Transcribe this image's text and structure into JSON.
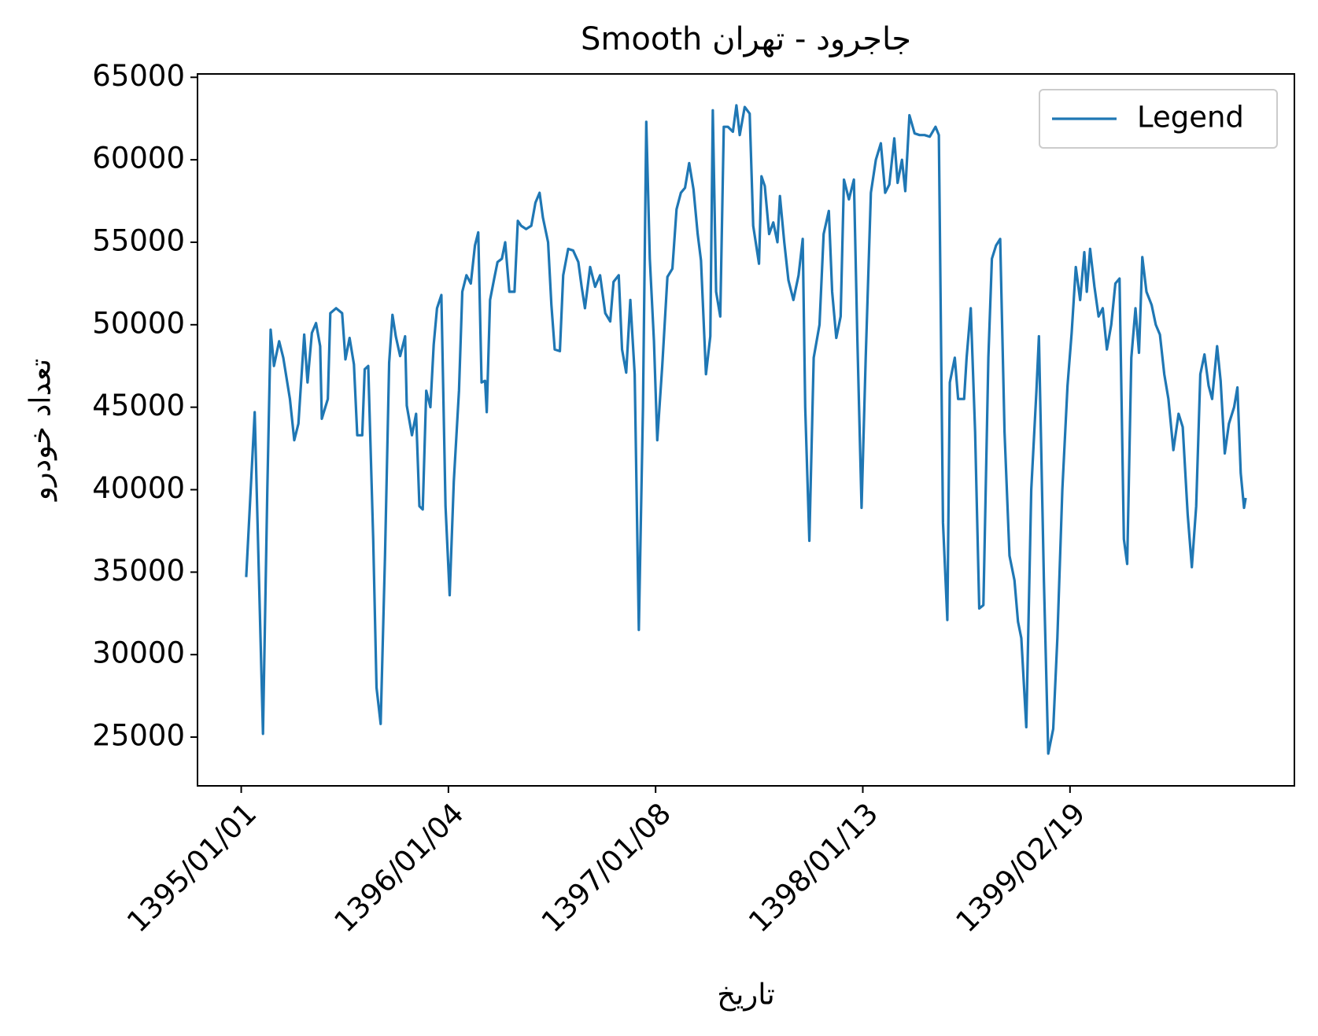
{
  "chart_data": {
    "type": "line",
    "title": "Smooth جاجرود - تهران",
    "x_label": "تاریخ",
    "y_label": "تعداد خودرو",
    "x": [
      2.4,
      6.5,
      10.5,
      12.6,
      14.2,
      15.8,
      18.3,
      20.3,
      23.5,
      25.6,
      27.6,
      30.4,
      32.0,
      34.1,
      36.1,
      38.1,
      38.9,
      41.8,
      43.0,
      45.8,
      48.7,
      50.3,
      52.3,
      54.4,
      56.0,
      58.4,
      59.6,
      61.3,
      63.7,
      65.3,
      67.3,
      69.4,
      71.4,
      73.0,
      74.6,
      76.7,
      79.1,
      79.9,
      82.4,
      84.4,
      86.0,
      87.6,
      89.3,
      91.3,
      92.9,
      94.5,
      96.6,
      98.6,
      100.6,
      102.6,
      105.1,
      106.7,
      108.7,
      110.8,
      112.8,
      114.4,
      116.0,
      117.7,
      118.5,
      120.1,
      122.1,
      123.7,
      125.8,
      127.4,
      129.4,
      131.9,
      133.5,
      135.1,
      137.5,
      140.0,
      142.0,
      144.0,
      145.6,
      148.1,
      149.7,
      151.3,
      153.8,
      155.4,
      157.8,
      160.2,
      162.7,
      164.3,
      165.9,
      168.4,
      170.8,
      173.2,
      175.7,
      178.1,
      179.7,
      182.2,
      183.8,
      185.8,
      187.8,
      189.9,
      191.9,
      193.9,
      195.5,
      197.2,
      199.2,
      200.8,
      203.2,
      205.7,
      208.1,
      210.1,
      212.2,
      214.2,
      216.2,
      218.3,
      220.3,
      221.9,
      224.3,
      226.4,
      227.6,
      229.2,
      231.2,
      232.9,
      234.9,
      237.3,
      239.0,
      240.6,
      243.0,
      245.4,
      247.1,
      249.9,
      251.1,
      252.7,
      254.8,
      256.8,
      258.8,
      260.0,
      262.1,
      264.1,
      266.5,
      269.0,
      271.0,
      272.2,
      274.2,
      276.3,
      279.1,
      281.1,
      283.6,
      285.2,
      287.2,
      289.3,
      290.9,
      293.3,
      295.7,
      297.4,
      299.4,
      301.4,
      303.9,
      306.3,
      308.7,
      310.8,
      312.8,
      315.2,
      316.8,
      318.9,
      320.5,
      322.5,
      325.0,
      327.4,
      329.8,
      332.3,
      335.1,
      336.7,
      338.7,
      340.8,
      342.0,
      344.4,
      346.0,
      348.9,
      350.1,
      352.1,
      354.2,
      356.2,
      358.2,
      360.6,
      362.3,
      364.3,
      366.3,
      368.4,
      370.8,
      373.2,
      374.9,
      376.5,
      378.9,
      381.3,
      383.8,
      385.0,
      387.4,
      389.5,
      391.9,
      393.9,
      396.3,
      398.8,
      400.8,
      402.8,
      404.9,
      406.9,
      408.1,
      409.7,
      411.8,
      413.8,
      415.8,
      417.8,
      419.9,
      421.9,
      423.9,
      426.0,
      427.6,
      429.6,
      431.6,
      433.3,
      434.9,
      436.9,
      439.4,
      441.4,
      443.4,
      445.5,
      447.5,
      449.9,
      452.4,
      454.4,
      456.8,
      458.8,
      460.9,
      462.9,
      464.9,
      466.9,
      468.6,
      471.0,
      472.7,
      474.7,
      476.7,
      479.2,
      480.8,
      482.4,
      484.0,
      484.8
    ],
    "series": [
      {
        "name": "Legend",
        "color": "#1f77b4",
        "values": [
          34700,
          44700,
          25200,
          40000,
          49700,
          47500,
          49000,
          48000,
          45500,
          43000,
          44000,
          49400,
          46500,
          49500,
          50100,
          48700,
          44300,
          45500,
          50700,
          51000,
          50700,
          47900,
          49200,
          47600,
          43300,
          43300,
          47300,
          47500,
          37000,
          28000,
          25800,
          36000,
          47700,
          50600,
          49300,
          48100,
          49300,
          45100,
          43300,
          44600,
          39000,
          38800,
          46000,
          45000,
          48800,
          51000,
          51800,
          39000,
          33600,
          40500,
          46000,
          52000,
          53000,
          52500,
          54800,
          55600,
          46500,
          46600,
          44700,
          51500,
          52800,
          53800,
          54000,
          55000,
          52000,
          52000,
          56300,
          56000,
          55800,
          56000,
          57400,
          58000,
          56500,
          55000,
          51200,
          48500,
          48400,
          53000,
          54600,
          54500,
          53800,
          52300,
          51000,
          53500,
          52300,
          53000,
          50700,
          50200,
          52600,
          53000,
          48500,
          47100,
          51500,
          47000,
          31500,
          45000,
          62300,
          54000,
          49000,
          43000,
          47500,
          52900,
          53400,
          57000,
          58000,
          58300,
          59800,
          58200,
          55500,
          53900,
          47000,
          49300,
          63000,
          52000,
          50500,
          62000,
          62000,
          61700,
          63300,
          61500,
          63200,
          62800,
          56000,
          53700,
          59000,
          58400,
          55500,
          56200,
          55000,
          57800,
          55000,
          52700,
          51500,
          53000,
          55200,
          45000,
          36900,
          48000,
          50000,
          55500,
          56900,
          52000,
          49200,
          50500,
          58800,
          57600,
          58800,
          49000,
          38900,
          48000,
          58000,
          60000,
          61000,
          58000,
          58500,
          61300,
          58600,
          60000,
          58100,
          62700,
          61600,
          61500,
          61500,
          61400,
          62000,
          61500,
          38000,
          32100,
          46500,
          48000,
          45500,
          45500,
          48000,
          51000,
          43500,
          32800,
          33000,
          48000,
          54000,
          54800,
          55200,
          43500,
          36000,
          34500,
          32000,
          31000,
          25600,
          40000,
          46000,
          49300,
          34500,
          24000,
          25500,
          31000,
          40000,
          46300,
          49500,
          53500,
          51500,
          54400,
          52000,
          54600,
          52300,
          50500,
          51000,
          48500,
          50000,
          52500,
          52800,
          37000,
          35500,
          48000,
          51000,
          48300,
          54100,
          52000,
          51200,
          50000,
          49400,
          47000,
          45500,
          42400,
          44600,
          43800,
          38500,
          35300,
          39000,
          47000,
          48200,
          46300,
          45500,
          48700,
          46600,
          42200,
          44000,
          45000,
          46200,
          41000,
          38900,
          39500
        ]
      }
    ],
    "xlim": [
      -21.1,
      508.3
    ],
    "ylim": [
      22045,
      65204
    ],
    "xticks": [
      {
        "value": 0,
        "label": "1395/01/01"
      },
      {
        "value": 100,
        "label": "1396/01/04"
      },
      {
        "value": 200,
        "label": "1397/01/08"
      },
      {
        "value": 300,
        "label": "1398/01/13"
      },
      {
        "value": 400,
        "label": "1399/02/19"
      }
    ],
    "yticks": [
      25000,
      30000,
      35000,
      40000,
      45000,
      50000,
      55000,
      60000,
      65000
    ],
    "grid": false,
    "legend": "upper right"
  }
}
